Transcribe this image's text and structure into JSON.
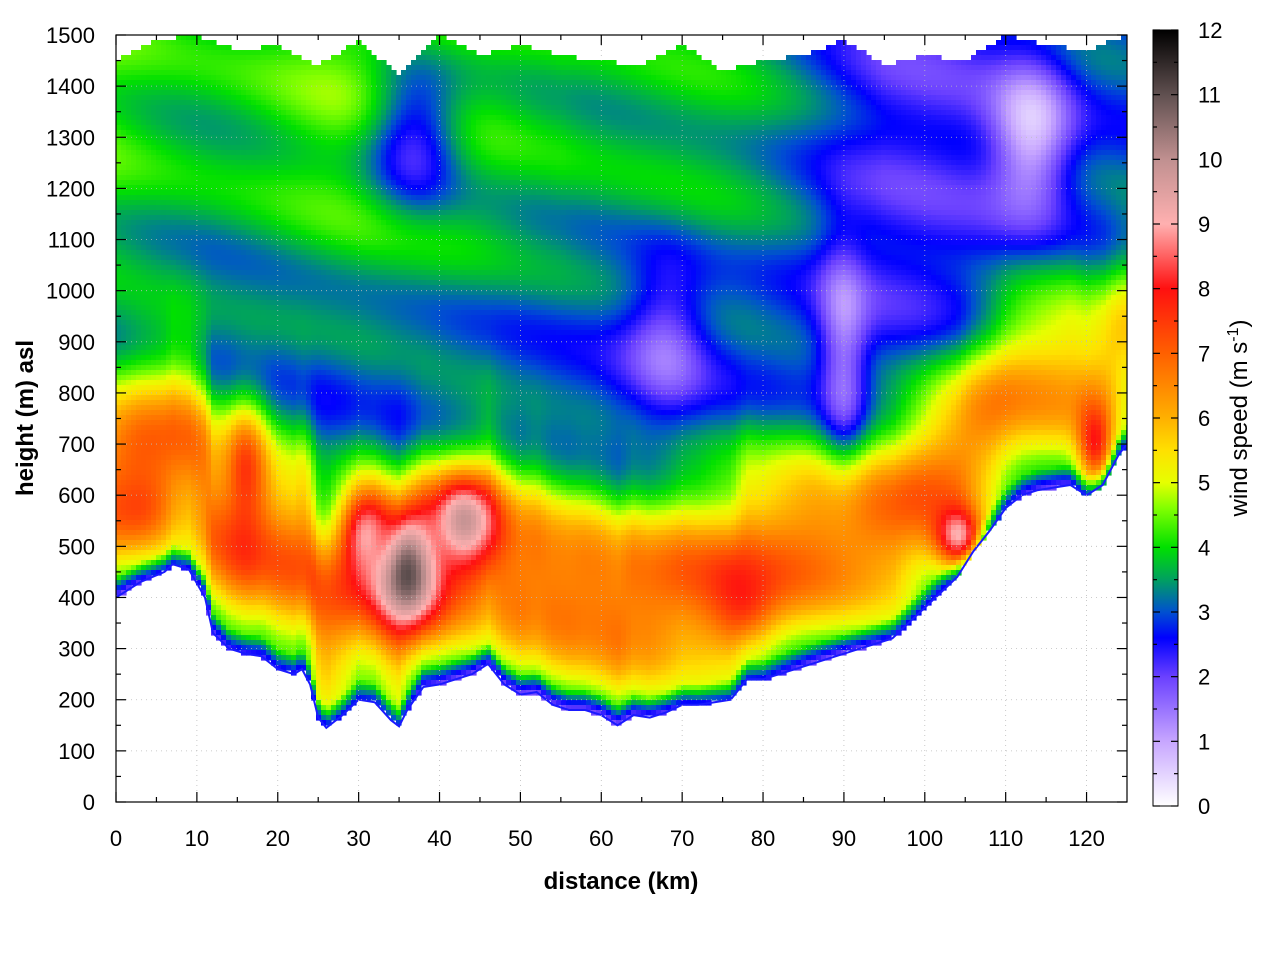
{
  "chart_data": {
    "type": "heatmap",
    "title": "",
    "xlabel": "distance (km)",
    "ylabel": "height (m) asl",
    "xlim": [
      0,
      125
    ],
    "ylim": [
      0,
      1500
    ],
    "x_ticks": [
      0,
      10,
      20,
      30,
      40,
      50,
      60,
      70,
      80,
      90,
      100,
      110,
      120
    ],
    "y_ticks": [
      0,
      100,
      200,
      300,
      400,
      500,
      600,
      700,
      800,
      900,
      1000,
      1100,
      1200,
      1300,
      1400,
      1500
    ],
    "grid": true,
    "colorbar": {
      "label_main": "wind speed (m s",
      "label_sup": "-1",
      "label_end": ")",
      "range": [
        0,
        12
      ],
      "ticks": [
        0,
        1,
        2,
        3,
        4,
        5,
        6,
        7,
        8,
        9,
        10,
        11,
        12
      ],
      "colormap": [
        [
          0,
          "#ffffff"
        ],
        [
          1,
          "#c7a6ff"
        ],
        [
          2,
          "#6a40ff"
        ],
        [
          2.6,
          "#0000ff"
        ],
        [
          3,
          "#0050d0"
        ],
        [
          3.5,
          "#00a060"
        ],
        [
          4,
          "#00e000"
        ],
        [
          4.6,
          "#80ff00"
        ],
        [
          5,
          "#e6ff00"
        ],
        [
          5.5,
          "#ffe000"
        ],
        [
          6,
          "#ffb000"
        ],
        [
          7,
          "#ff6000"
        ],
        [
          8,
          "#ff1010"
        ],
        [
          9,
          "#ffb0b0"
        ],
        [
          10,
          "#c09090"
        ],
        [
          11,
          "#605050"
        ],
        [
          12,
          "#000000"
        ]
      ]
    },
    "terrain_height_m": {
      "x": [
        0,
        3,
        6,
        7,
        9,
        11,
        12,
        14,
        16,
        18,
        20,
        22,
        23,
        24,
        25,
        26,
        28,
        30,
        32,
        34,
        35,
        36,
        38,
        40,
        42,
        44,
        46,
        48,
        50,
        52,
        54,
        56,
        58,
        60,
        62,
        64,
        66,
        68,
        70,
        72,
        74,
        76,
        78,
        80,
        82,
        84,
        86,
        88,
        90,
        92,
        94,
        96,
        98,
        100,
        102,
        104,
        106,
        108,
        110,
        112,
        114,
        116,
        118,
        120,
        122,
        124,
        125
      ],
      "z": [
        400,
        430,
        450,
        465,
        455,
        400,
        330,
        300,
        290,
        285,
        260,
        250,
        260,
        230,
        165,
        145,
        170,
        200,
        195,
        160,
        148,
        180,
        225,
        230,
        240,
        250,
        270,
        230,
        210,
        215,
        190,
        180,
        180,
        170,
        150,
        170,
        165,
        175,
        190,
        190,
        195,
        200,
        240,
        240,
        250,
        260,
        270,
        280,
        290,
        300,
        310,
        320,
        350,
        380,
        410,
        440,
        490,
        530,
        575,
        600,
        610,
        615,
        620,
        600,
        620,
        680,
        700
      ]
    },
    "top_boundary_m": {
      "x": [
        0,
        5,
        10,
        15,
        20,
        25,
        30,
        35,
        40,
        45,
        50,
        55,
        60,
        65,
        70,
        75,
        80,
        85,
        90,
        95,
        100,
        105,
        110,
        115,
        120,
        125
      ],
      "z": [
        1450,
        1490,
        1500,
        1470,
        1480,
        1440,
        1490,
        1420,
        1500,
        1460,
        1480,
        1460,
        1450,
        1440,
        1480,
        1430,
        1450,
        1460,
        1490,
        1440,
        1460,
        1450,
        1500,
        1480,
        1470,
        1500
      ]
    },
    "features": [
      {
        "x": 3,
        "z": 620,
        "ws": 7.5,
        "sx": 4,
        "sz": 100
      },
      {
        "x": 16,
        "z": 600,
        "ws": 7.8,
        "sx": 2.5,
        "sz": 150
      },
      {
        "x": 36,
        "z": 460,
        "ws": 11.2,
        "sx": 4,
        "sz": 110
      },
      {
        "x": 31,
        "z": 520,
        "ws": 9.3,
        "sx": 3,
        "sz": 80
      },
      {
        "x": 43,
        "z": 540,
        "ws": 9.8,
        "sx": 4,
        "sz": 90
      },
      {
        "x": 77,
        "z": 390,
        "ws": 7.8,
        "sx": 4,
        "sz": 80
      },
      {
        "x": 104,
        "z": 520,
        "ws": 9.0,
        "sx": 3,
        "sz": 60
      },
      {
        "x": 121,
        "z": 700,
        "ws": 7.8,
        "sx": 2,
        "sz": 80
      },
      {
        "x": 68,
        "z": 900,
        "ws": 1.6,
        "sx": 5,
        "sz": 150
      },
      {
        "x": 90,
        "z": 900,
        "ws": 1.2,
        "sx": 3,
        "sz": 200
      },
      {
        "x": 113,
        "z": 1300,
        "ws": 0.6,
        "sx": 5,
        "sz": 150
      },
      {
        "x": 37,
        "z": 1300,
        "ws": 2.2,
        "sx": 6,
        "sz": 150
      }
    ]
  }
}
